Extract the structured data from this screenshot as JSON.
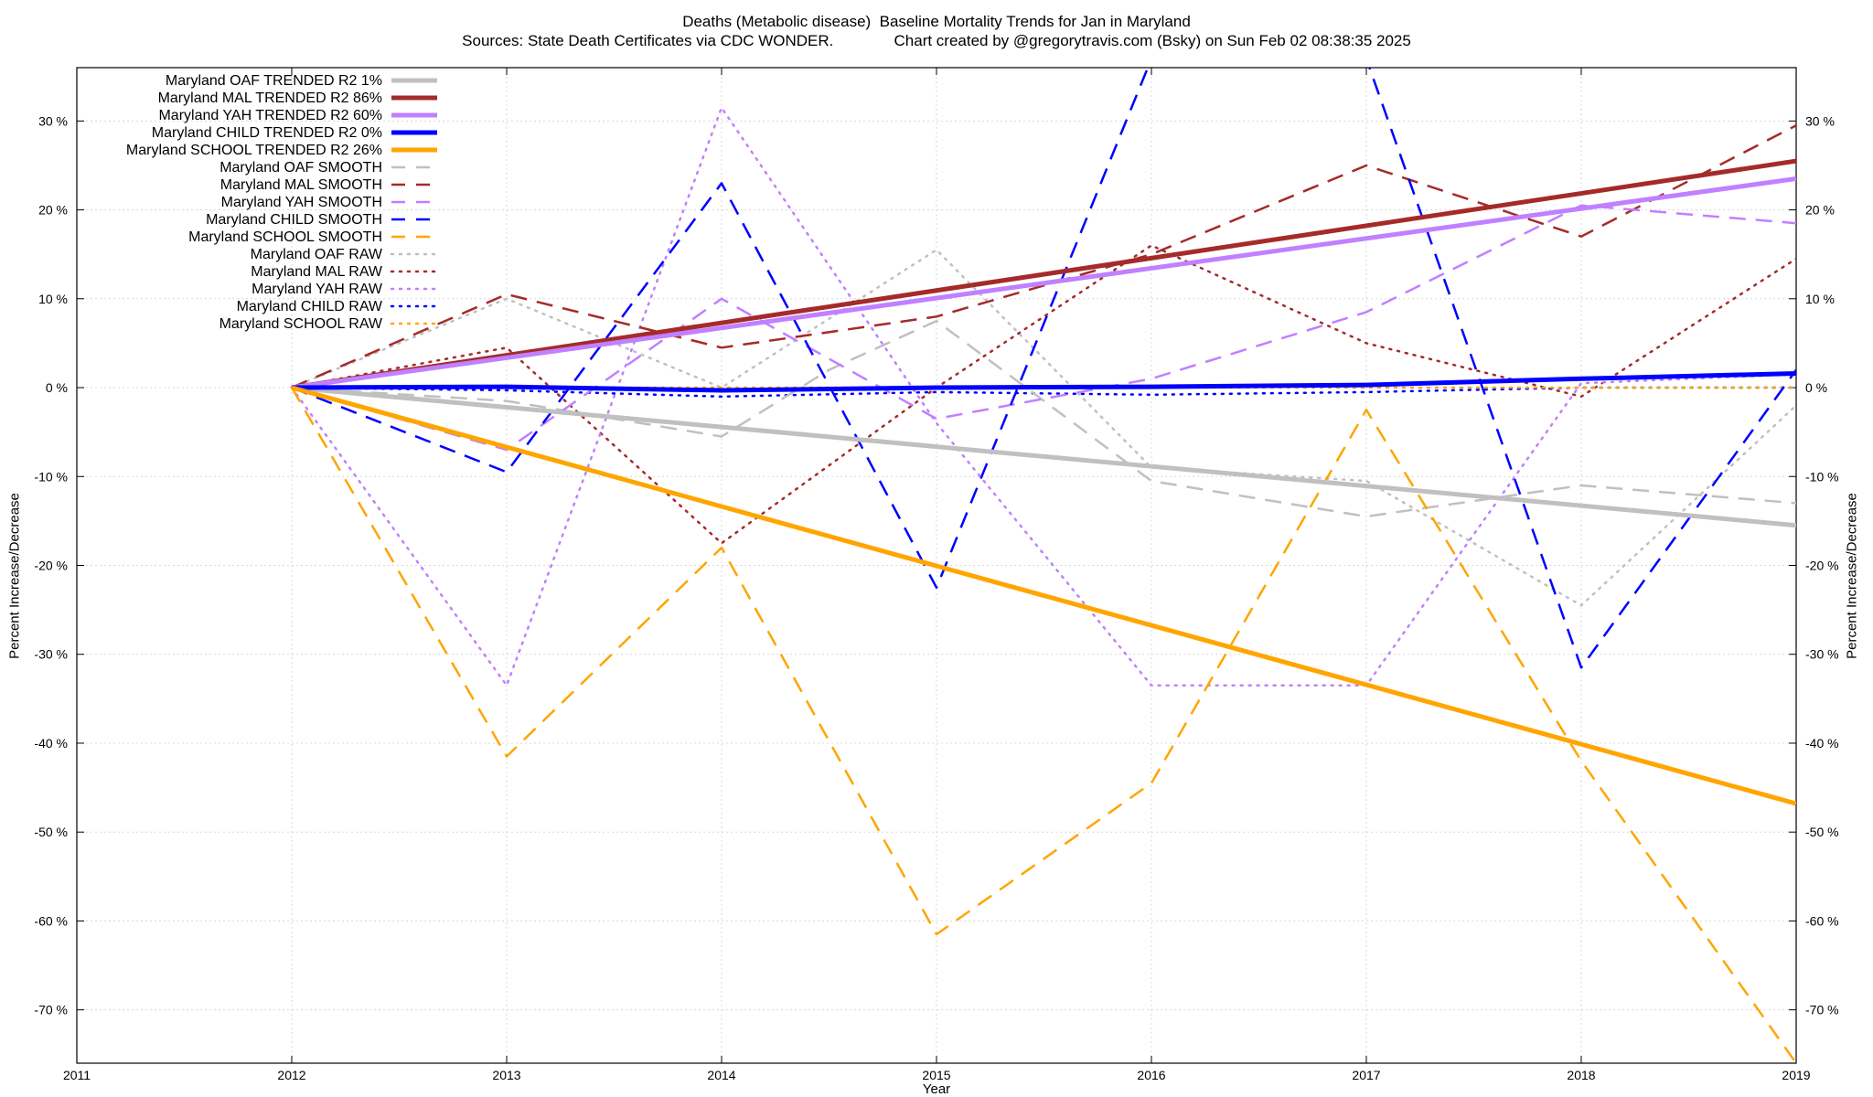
{
  "chart_data": {
    "type": "line",
    "title": "Deaths (Metabolic disease)  Baseline Mortality Trends for Jan in Maryland",
    "subtitle": "Sources: State Death Certificates via CDC WONDER.              Chart created by @gregorytravis.com (Bsky) on Sun Feb 02 08:38:35 2025",
    "xlabel": "Year",
    "ylabel": "Percent Increase/Decrease",
    "xlim": [
      2011,
      2019
    ],
    "ylim": [
      -76,
      36
    ],
    "x_ticks": [
      2011,
      2012,
      2013,
      2014,
      2015,
      2016,
      2017,
      2018,
      2019
    ],
    "y_ticks": [
      30,
      20,
      10,
      0,
      -10,
      -20,
      -30,
      -40,
      -50,
      -60,
      -70
    ],
    "y_tick_suffix": " %",
    "grid": true,
    "legend_position": "top-left",
    "series": [
      {
        "name": "Maryland OAF TRENDED R2  1%",
        "color": "#c0c0c0",
        "style": "solid",
        "x": [
          2012,
          2019
        ],
        "y": [
          0,
          -15.5
        ]
      },
      {
        "name": "Maryland MAL TRENDED R2  86%",
        "color": "#a52a2a",
        "style": "solid",
        "x": [
          2012,
          2019
        ],
        "y": [
          0,
          25.5
        ]
      },
      {
        "name": "Maryland YAH TRENDED R2  60%",
        "color": "#c080ff",
        "style": "solid",
        "x": [
          2012,
          2019
        ],
        "y": [
          0,
          23.5
        ]
      },
      {
        "name": "Maryland CHILD TRENDED R2  0%",
        "color": "#0000ff",
        "style": "solid",
        "x": [
          2012,
          2013,
          2014,
          2015,
          2016,
          2017,
          2018,
          2019
        ],
        "y": [
          0,
          0.1,
          -0.3,
          0,
          0.1,
          0.3,
          1,
          1.6
        ]
      },
      {
        "name": "Maryland SCHOOL TRENDED R2  26%",
        "color": "#ffa500",
        "style": "solid",
        "x": [
          2012,
          2019
        ],
        "y": [
          0,
          -46.8
        ]
      },
      {
        "name": "Maryland OAF SMOOTH",
        "color": "#c0c0c0",
        "style": "dashed",
        "x": [
          2012,
          2013,
          2014,
          2014.5,
          2015,
          2016,
          2017,
          2018,
          2019
        ],
        "y": [
          0,
          -1.5,
          -5.5,
          2,
          7.5,
          -10.5,
          -14.5,
          -11,
          -13
        ]
      },
      {
        "name": "Maryland MAL SMOOTH",
        "color": "#a52a2a",
        "style": "dashed",
        "x": [
          2012,
          2013,
          2014,
          2015,
          2016,
          2017,
          2018,
          2019
        ],
        "y": [
          0,
          10.5,
          4.5,
          8,
          15,
          25,
          17,
          29.5
        ]
      },
      {
        "name": "Maryland YAH SMOOTH",
        "color": "#c080ff",
        "style": "dashed",
        "x": [
          2012,
          2013,
          2014,
          2015,
          2016,
          2017,
          2018,
          2019
        ],
        "y": [
          0,
          -7,
          10,
          -3.5,
          1,
          8.5,
          20.5,
          18.5
        ]
      },
      {
        "name": "Maryland CHILD SMOOTH",
        "color": "#0000ff",
        "style": "dashed",
        "x": [
          2012,
          2013,
          2014,
          2015,
          2016,
          2017,
          2018,
          2019
        ],
        "y": [
          0,
          -9.5,
          23,
          -22.5,
          37,
          37,
          -31.5,
          2
        ]
      },
      {
        "name": "Maryland SCHOOL SMOOTH",
        "color": "#ffa500",
        "style": "dashed",
        "x": [
          2012,
          2013,
          2014,
          2015,
          2016,
          2017,
          2018,
          2019
        ],
        "y": [
          0,
          -41.5,
          -18,
          -61.5,
          -44.5,
          -2.5,
          -42,
          -76
        ]
      },
      {
        "name": "Maryland OAF RAW",
        "color": "#c0c0c0",
        "style": "dotted",
        "x": [
          2012,
          2013,
          2014,
          2015,
          2016,
          2017,
          2018,
          2019
        ],
        "y": [
          0,
          10,
          0,
          15.5,
          -9,
          -10.5,
          -24.5,
          -2
        ]
      },
      {
        "name": "Maryland MAL RAW",
        "color": "#a52a2a",
        "style": "dotted",
        "x": [
          2012,
          2013,
          2014,
          2015,
          2016,
          2017,
          2018,
          2019
        ],
        "y": [
          0,
          4.5,
          -17.5,
          0,
          16,
          5,
          -1,
          14.5
        ]
      },
      {
        "name": "Maryland YAH RAW",
        "color": "#c080ff",
        "style": "dotted",
        "x": [
          2012,
          2013,
          2014,
          2015,
          2016,
          2017,
          2018,
          2019
        ],
        "y": [
          0,
          -33.5,
          31.5,
          -4,
          -33.5,
          -33.5,
          0.5,
          1.5
        ]
      },
      {
        "name": "Maryland CHILD RAW",
        "color": "#0000ff",
        "style": "dotted",
        "x": [
          2012,
          2013,
          2014,
          2015,
          2016,
          2017,
          2018,
          2019
        ],
        "y": [
          0,
          -0.3,
          -1,
          -0.5,
          -0.8,
          -0.5,
          0,
          0
        ]
      },
      {
        "name": "Maryland SCHOOL RAW",
        "color": "#ffa500",
        "style": "dotted",
        "x": [
          2012,
          2013,
          2014,
          2015,
          2016,
          2017,
          2018,
          2019
        ],
        "y": [
          0,
          0,
          0,
          0,
          0,
          0,
          0,
          0
        ]
      }
    ]
  }
}
